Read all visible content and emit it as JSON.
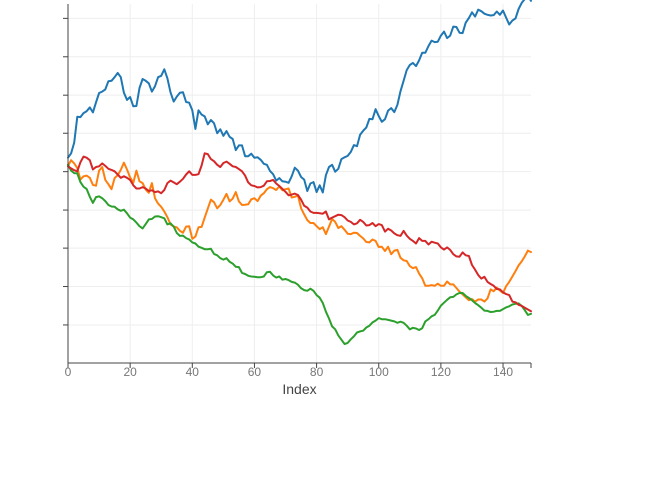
{
  "chart_data": {
    "type": "line",
    "xlabel": "Index",
    "ylabel": "",
    "xlim": [
      0,
      149
    ],
    "ylim": [
      0,
      100
    ],
    "x_ticks": [
      0,
      20,
      40,
      60,
      80,
      100,
      120,
      140
    ],
    "x_tick_labels": [
      "0",
      "20",
      "40",
      "60",
      "80",
      "100",
      "120",
      "140"
    ],
    "y_ticks": [
      10.6,
      21.3,
      32.0,
      42.6,
      53.3,
      64.0,
      74.6,
      85.3,
      96.0
    ],
    "y_tick_labels": [],
    "grid": true,
    "legend": "none",
    "x": [
      0,
      1,
      2,
      3,
      4,
      5,
      6,
      7,
      8,
      9,
      10,
      11,
      12,
      13,
      14,
      15,
      16,
      17,
      18,
      19,
      20,
      21,
      22,
      23,
      24,
      25,
      26,
      27,
      28,
      29,
      30,
      31,
      32,
      33,
      34,
      35,
      36,
      37,
      38,
      39,
      40,
      41,
      42,
      43,
      44,
      45,
      46,
      47,
      48,
      49,
      50,
      51,
      52,
      53,
      54,
      55,
      56,
      57,
      58,
      59,
      60,
      61,
      62,
      63,
      64,
      65,
      66,
      67,
      68,
      69,
      70,
      71,
      72,
      73,
      74,
      75,
      76,
      77,
      78,
      79,
      80,
      81,
      82,
      83,
      84,
      85,
      86,
      87,
      88,
      89,
      90,
      91,
      92,
      93,
      94,
      95,
      96,
      97,
      98,
      99,
      100,
      101,
      102,
      103,
      104,
      105,
      106,
      107,
      108,
      109,
      110,
      111,
      112,
      113,
      114,
      115,
      116,
      117,
      118,
      119,
      120,
      121,
      122,
      123,
      124,
      125,
      126,
      127,
      128,
      129,
      130,
      131,
      132,
      133,
      134,
      135,
      136,
      137,
      138,
      139,
      140,
      141,
      142,
      143,
      144,
      145,
      146,
      147,
      148,
      149
    ],
    "series": [
      {
        "color": "#1f77b4",
        "values": [
          57.2,
          58.4,
          61.4,
          68.6,
          68.5,
          69.6,
          70.1,
          71.2,
          69.8,
          72.6,
          75.2,
          75.6,
          76.2,
          78.5,
          78.6,
          79.6,
          80.8,
          79.6,
          75.3,
          73.3,
          74.1,
          71.5,
          71.6,
          76.6,
          79.1,
          78.6,
          77.9,
          75.6,
          77.1,
          79.6,
          80.0,
          81.8,
          79.3,
          75.4,
          72.8,
          74.2,
          75.3,
          75.4,
          72.7,
          72.5,
          70.4,
          65.2,
          70.4,
          69.2,
          68.7,
          66.5,
          67.7,
          66.8,
          64.0,
          65.1,
          63.3,
          64.6,
          63.0,
          62.4,
          59.3,
          60.6,
          60.6,
          57.6,
          57.6,
          58.3,
          57.2,
          57.3,
          56.6,
          55.5,
          55.2,
          53.5,
          52.6,
          50.8,
          51.5,
          50.6,
          50.5,
          50.2,
          52.0,
          54.4,
          53.6,
          51.8,
          51.1,
          47.9,
          50.0,
          50.4,
          47.6,
          49.5,
          47.5,
          52.3,
          54.6,
          55.2,
          53.3,
          54.1,
          56.8,
          57.3,
          57.7,
          58.8,
          60.7,
          60.4,
          63.6,
          64.7,
          65.6,
          68.0,
          67.9,
          70.7,
          68.8,
          67.2,
          67.9,
          70.3,
          71.0,
          69.9,
          71.9,
          75.7,
          78.6,
          81.6,
          83.0,
          83.6,
          82.7,
          84.3,
          86.4,
          86.4,
          88.3,
          89.8,
          89.4,
          89.5,
          91.2,
          92.3,
          90.5,
          91.2,
          93.7,
          93.6,
          92.0,
          91.9,
          94.8,
          96.1,
          97.7,
          96.5,
          98.4,
          98.0,
          97.3,
          97.0,
          96.8,
          96.9,
          97.9,
          97.0,
          98.2,
          96.2,
          94.3,
          95.4,
          96.0,
          98.6,
          100.3,
          101.4,
          102.3,
          100.9
        ]
      },
      {
        "color": "#ff7f0e",
        "values": [
          54.9,
          56.5,
          55.6,
          54.3,
          51.1,
          52.0,
          52.2,
          51.6,
          49.6,
          49.4,
          53.6,
          54.6,
          51.0,
          49.8,
          48.4,
          51.5,
          52.3,
          53.8,
          55.8,
          53.9,
          51.7,
          50.2,
          53.6,
          50.6,
          50.1,
          48.3,
          47.4,
          50.1,
          45.9,
          44.4,
          43.5,
          42.2,
          40.6,
          38.6,
          38.0,
          37.8,
          36.8,
          36.3,
          38.0,
          38.1,
          34.6,
          35.2,
          37.8,
          37.9,
          40.5,
          43.0,
          45.5,
          44.8,
          43.1,
          44.0,
          45.5,
          47.1,
          45.0,
          45.8,
          47.6,
          45.0,
          44.0,
          44.1,
          44.2,
          45.6,
          45.9,
          45.1,
          46.6,
          47.3,
          48.4,
          49.0,
          48.7,
          48.2,
          49.2,
          48.1,
          48.4,
          48.6,
          46.1,
          46.3,
          46.7,
          43.1,
          41.4,
          39.8,
          39.0,
          39.0,
          38.1,
          37.3,
          37.8,
          35.9,
          38.0,
          40.1,
          39.3,
          37.6,
          38.1,
          37.1,
          36.0,
          35.9,
          36.3,
          36.2,
          35.4,
          34.7,
          33.7,
          33.6,
          34.4,
          34.0,
          32.3,
          32.4,
          31.2,
          32.4,
          30.3,
          31.3,
          31.5,
          29.3,
          28.6,
          28.4,
          27.0,
          26.4,
          26.7,
          24.9,
          23.6,
          21.5,
          21.5,
          21.7,
          21.5,
          22.1,
          21.5,
          21.5,
          22.7,
          21.9,
          21.9,
          20.9,
          19.9,
          19.1,
          18.3,
          17.5,
          17.8,
          17.1,
          17.7,
          17.7,
          17.1,
          18.0,
          20.5,
          20.0,
          21.0,
          20.2,
          19.5,
          21.4,
          22.6,
          24.1,
          25.6,
          27.2,
          28.3,
          29.7,
          31.3,
          30.9
        ]
      },
      {
        "color": "#2ca02c",
        "values": [
          55.2,
          53.6,
          52.9,
          52.8,
          50.4,
          49.1,
          48.5,
          46.3,
          44.6,
          46.2,
          46.4,
          45.9,
          45.1,
          44.0,
          43.6,
          43.5,
          42.8,
          42.4,
          42.7,
          41.7,
          40.5,
          40.0,
          39.1,
          38.1,
          37.5,
          38.7,
          40.0,
          40.1,
          40.8,
          40.9,
          40.6,
          40.3,
          38.6,
          38.9,
          38.0,
          36.2,
          35.4,
          35.5,
          34.8,
          34.4,
          33.6,
          33.3,
          32.4,
          32.1,
          31.7,
          31.7,
          31.8,
          30.4,
          30.0,
          29.2,
          28.8,
          29.2,
          28.2,
          27.7,
          26.8,
          26.7,
          25.1,
          24.8,
          24.3,
          24.1,
          24.0,
          23.9,
          23.9,
          24.1,
          25.3,
          25.4,
          24.4,
          23.8,
          24.1,
          23.2,
          23.4,
          23.1,
          22.6,
          22.4,
          21.8,
          20.8,
          20.3,
          20.1,
          20.7,
          20.1,
          18.9,
          18.2,
          16.7,
          14.3,
          12.4,
          10.2,
          9.4,
          7.7,
          6.5,
          5.3,
          5.6,
          6.6,
          7.4,
          8.5,
          8.8,
          9.0,
          9.9,
          10.4,
          11.3,
          11.8,
          12.5,
          12.2,
          12.2,
          12.0,
          11.8,
          11.6,
          11.2,
          11.5,
          11.2,
          10.4,
          9.4,
          9.8,
          9.6,
          9.2,
          9.7,
          11.6,
          12.2,
          13.0,
          13.4,
          14.6,
          16.0,
          16.8,
          17.6,
          18.3,
          18.4,
          19.1,
          19.5,
          19.5,
          18.7,
          18.1,
          17.5,
          16.7,
          16.1,
          15.4,
          14.6,
          14.5,
          14.2,
          14.3,
          14.5,
          14.5,
          15.0,
          15.5,
          15.8,
          16.3,
          16.5,
          16.6,
          15.9,
          14.7,
          13.4,
          13.7
        ]
      },
      {
        "color": "#d62728",
        "values": [
          54.8,
          54.2,
          53.7,
          53.4,
          55.9,
          57.5,
          57.2,
          56.5,
          53.9,
          54.6,
          54.8,
          55.6,
          54.9,
          54.1,
          53.8,
          53.4,
          52.5,
          51.6,
          52.0,
          51.6,
          51.0,
          49.5,
          48.6,
          48.6,
          49.0,
          48.6,
          47.9,
          48.1,
          47.6,
          47.8,
          47.3,
          48.2,
          50.1,
          50.8,
          50.3,
          49.8,
          50.5,
          51.3,
          52.5,
          53.4,
          52.4,
          52.4,
          52.6,
          55.0,
          58.4,
          58.2,
          56.8,
          56.2,
          55.2,
          54.6,
          55.7,
          56.1,
          55.5,
          54.8,
          54.6,
          54.0,
          53.4,
          52.2,
          50.3,
          49.5,
          49.3,
          48.9,
          49.0,
          49.4,
          50.6,
          50.7,
          51.0,
          50.0,
          49.3,
          48.5,
          47.7,
          46.7,
          46.9,
          47.2,
          46.8,
          45.5,
          43.8,
          43.3,
          42.2,
          41.8,
          41.8,
          41.7,
          41.6,
          42.2,
          40.0,
          40.5,
          40.9,
          41.3,
          41.2,
          40.6,
          39.7,
          39.3,
          38.6,
          38.9,
          39.9,
          39.3,
          38.3,
          38.4,
          39.0,
          38.1,
          38.7,
          38.4,
          36.6,
          37.4,
          36.9,
          36.1,
          35.6,
          35.4,
          36.8,
          35.5,
          34.6,
          34.0,
          33.3,
          34.8,
          34.0,
          34.0,
          33.0,
          33.8,
          33.5,
          33.3,
          32.2,
          31.6,
          32.2,
          31.5,
          30.3,
          29.7,
          29.6,
          30.8,
          30.0,
          29.8,
          27.3,
          26.0,
          24.5,
          23.5,
          24.0,
          22.6,
          22.0,
          21.5,
          20.6,
          20.5,
          19.7,
          19.2,
          18.9,
          17.1,
          16.9,
          16.2,
          15.9,
          15.4,
          14.9,
          14.4
        ]
      }
    ]
  }
}
